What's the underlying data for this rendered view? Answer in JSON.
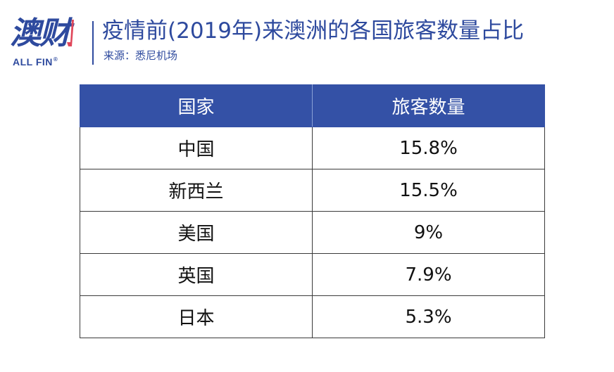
{
  "logo": {
    "main_text": "澳财",
    "sub_text": "ALL FIN",
    "registered_mark": "®",
    "brand_color": "#2e4a9e",
    "accent_color": "#e0475a"
  },
  "header": {
    "title": "疫情前(2019年)来澳洲的各国旅客数量占比",
    "source": "来源：悉尼机场"
  },
  "table": {
    "columns": [
      "国家",
      "旅客数量"
    ],
    "header_color": "#3451a6",
    "rows": [
      {
        "country": "中国",
        "share": "15.8%"
      },
      {
        "country": "新西兰",
        "share": "15.5%"
      },
      {
        "country": "美国",
        "share": "9%"
      },
      {
        "country": "英国",
        "share": "7.9%"
      },
      {
        "country": "日本",
        "share": "5.3%"
      }
    ]
  }
}
